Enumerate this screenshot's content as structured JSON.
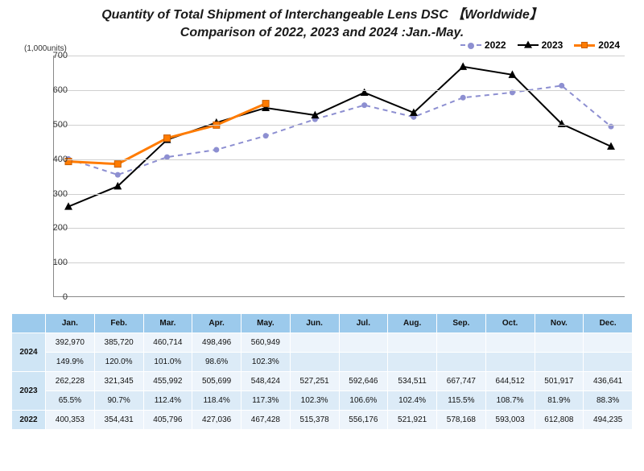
{
  "title_line1": "Quantity of Total Shipment of Interchangeable Lens DSC 【Worldwide】",
  "title_line2": "Comparison of 2022, 2023 and 2024 :Jan.-May.",
  "y_unit_label": "(1,000units)",
  "legend": {
    "s2022": "2022",
    "s2023": "2023",
    "s2024": "2024"
  },
  "chart": {
    "type": "line",
    "months": [
      "Jan.",
      "Feb.",
      "Mar.",
      "Apr.",
      "May.",
      "Jun.",
      "Jul.",
      "Aug.",
      "Sep.",
      "Oct.",
      "Nov.",
      "Dec."
    ],
    "ylim": [
      0,
      700
    ],
    "ytick_step": 100,
    "yticks": [
      0,
      100,
      200,
      300,
      400,
      500,
      600,
      700
    ],
    "grid_color": "#cfcfcf",
    "background_color": "#ffffff",
    "series": {
      "s2022": {
        "label": "2022",
        "color": "#8d8fd1",
        "line_dash": "6,5",
        "line_width": 2,
        "marker": "circle",
        "marker_size": 7,
        "values": [
          400.353,
          354.431,
          405.796,
          427.036,
          467.428,
          515.378,
          556.176,
          521.921,
          578.168,
          593.003,
          612.808,
          494.235
        ]
      },
      "s2023": {
        "label": "2023",
        "color": "#000000",
        "line_dash": "",
        "line_width": 2,
        "marker": "triangle",
        "marker_size": 9,
        "values": [
          262.228,
          321.345,
          455.992,
          505.699,
          548.424,
          527.251,
          592.646,
          534.511,
          667.747,
          644.512,
          501.917,
          436.641
        ]
      },
      "s2024": {
        "label": "2024",
        "color": "#ff7b00",
        "line_dash": "",
        "line_width": 3,
        "marker": "square",
        "marker_size": 8,
        "values": [
          392.97,
          385.72,
          460.714,
          498.496,
          560.949
        ]
      }
    }
  },
  "table": {
    "header_bg": "#9ccaec",
    "year_bg": "#cfe5f5",
    "row_a_bg": "#edf4fb",
    "row_b_bg": "#dcebf7",
    "rows": [
      {
        "year": "2024",
        "qty": [
          "392,970",
          "385,720",
          "460,714",
          "498,496",
          "560,949",
          "",
          "",
          "",
          "",
          "",
          "",
          ""
        ],
        "pct": [
          "149.9%",
          "120.0%",
          "101.0%",
          "98.6%",
          "102.3%",
          "",
          "",
          "",
          "",
          "",
          "",
          ""
        ]
      },
      {
        "year": "2023",
        "qty": [
          "262,228",
          "321,345",
          "455,992",
          "505,699",
          "548,424",
          "527,251",
          "592,646",
          "534,511",
          "667,747",
          "644,512",
          "501,917",
          "436,641"
        ],
        "pct": [
          "65.5%",
          "90.7%",
          "112.4%",
          "118.4%",
          "117.3%",
          "102.3%",
          "106.6%",
          "102.4%",
          "115.5%",
          "108.7%",
          "81.9%",
          "88.3%"
        ]
      },
      {
        "year": "2022",
        "qty": [
          "400,353",
          "354,431",
          "405,796",
          "427,036",
          "467,428",
          "515,378",
          "556,176",
          "521,921",
          "578,168",
          "593,003",
          "612,808",
          "494,235"
        ],
        "pct": null
      }
    ]
  }
}
